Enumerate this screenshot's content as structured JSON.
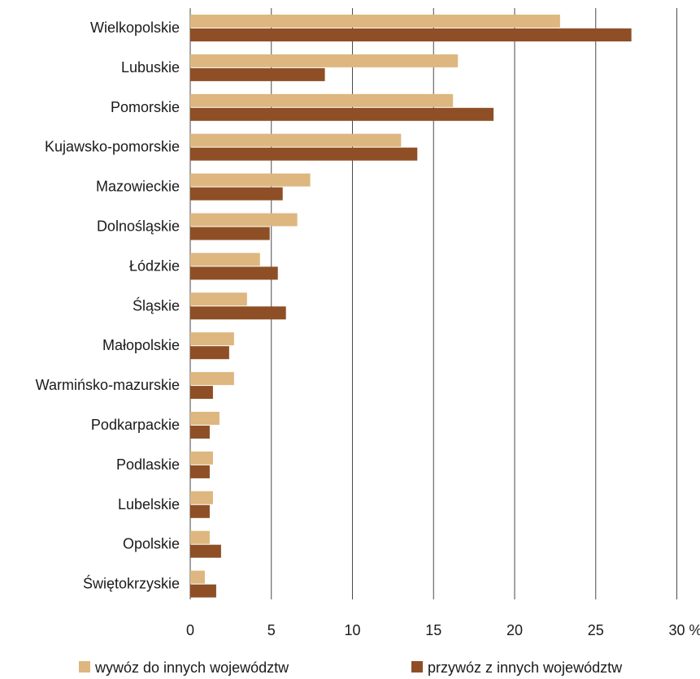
{
  "chart_data": {
    "type": "bar",
    "orientation": "horizontal",
    "categories": [
      "Wielkopolskie",
      "Lubuskie",
      "Pomorskie",
      "Kujawsko-pomorskie",
      "Mazowieckie",
      "Dolnośląskie",
      "Łódzkie",
      "Śląskie",
      "Małopolskie",
      "Warmińsko-mazurskie",
      "Podkarpackie",
      "Podlaskie",
      "Lubelskie",
      "Opolskie",
      "Świętokrzyskie"
    ],
    "series": [
      {
        "name": "wywóz do innych województw",
        "color": "#DDB77F",
        "values": [
          22.8,
          16.5,
          16.2,
          13.0,
          7.4,
          6.6,
          4.3,
          3.5,
          2.7,
          2.7,
          1.8,
          1.4,
          1.4,
          1.2,
          0.9
        ]
      },
      {
        "name": "przywóz z innych województw",
        "color": "#8E4F26",
        "values": [
          27.2,
          8.3,
          18.7,
          14.0,
          5.7,
          4.9,
          5.4,
          5.9,
          2.4,
          1.4,
          1.2,
          1.2,
          1.2,
          1.9,
          1.6
        ]
      }
    ],
    "x_ticks": [
      "0",
      "5",
      "10",
      "15",
      "20",
      "25",
      "30 %"
    ],
    "xlim": [
      0,
      30
    ],
    "grid": true,
    "legend_position": "bottom"
  }
}
